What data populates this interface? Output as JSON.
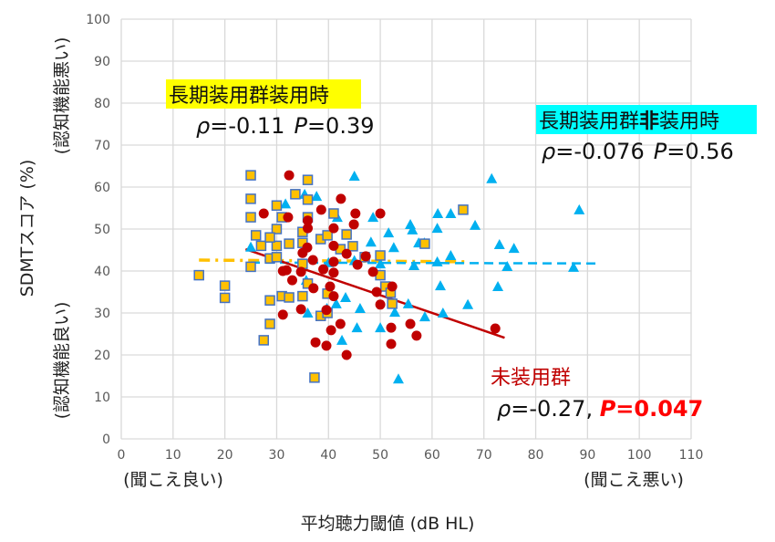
{
  "chart_data": {
    "type": "scatter",
    "xlabel": "平均聴力閾値 (dB HL)",
    "ylabel": "SDMTスコア (%)",
    "ylabel_top_note": "(認知機能悪い)",
    "ylabel_bottom_note": "(認知機能良い)",
    "xlabel_left_note": "(聞こえ良い)",
    "xlabel_right_note": "(聞こえ悪い)",
    "xlim": [
      0,
      110
    ],
    "ylim": [
      0,
      100
    ],
    "xticks": [
      0,
      10,
      20,
      30,
      40,
      50,
      60,
      70,
      80,
      90,
      100,
      110
    ],
    "yticks": [
      0,
      10,
      20,
      30,
      40,
      50,
      60,
      70,
      80,
      90,
      100
    ],
    "grid": true,
    "colors": {
      "users_on": "#ffc000",
      "users_on_edge": "#4472c4",
      "users_off": "#00b0f0",
      "non_users": "#c00000",
      "grid": "#d9d9d9"
    },
    "series": [
      {
        "name": "長期装用群装用時",
        "marker": "square",
        "points": [
          [
            15,
            39
          ],
          [
            20,
            36.5
          ],
          [
            20,
            33.6
          ],
          [
            25,
            62.8
          ],
          [
            25,
            57.2
          ],
          [
            25,
            52.8
          ],
          [
            25,
            41
          ],
          [
            26,
            48.5
          ],
          [
            27,
            46
          ],
          [
            27.5,
            23.5
          ],
          [
            28.7,
            43
          ],
          [
            28.7,
            33
          ],
          [
            28.7,
            27.4
          ],
          [
            30,
            55.6
          ],
          [
            30,
            46
          ],
          [
            30,
            43.3
          ],
          [
            30,
            50
          ],
          [
            28.7,
            48
          ],
          [
            31,
            52.8
          ],
          [
            31,
            34
          ],
          [
            32.4,
            46.5
          ],
          [
            32.4,
            33.7
          ],
          [
            33.6,
            58.3
          ],
          [
            35,
            49.3
          ],
          [
            35,
            46.7
          ],
          [
            35,
            41.7
          ],
          [
            35,
            34
          ],
          [
            36,
            61.7
          ],
          [
            36,
            57
          ],
          [
            36,
            52.8
          ],
          [
            36,
            37
          ],
          [
            37.3,
            14.6
          ],
          [
            38.5,
            47.6
          ],
          [
            38.5,
            29.3
          ],
          [
            39.8,
            48.5
          ],
          [
            39.8,
            34.6
          ],
          [
            39.8,
            30
          ],
          [
            41,
            53.7
          ],
          [
            42.3,
            45.2
          ],
          [
            43.5,
            48.7
          ],
          [
            44.7,
            45.9
          ],
          [
            47,
            43.3
          ],
          [
            50,
            43.7
          ],
          [
            51,
            36.3
          ],
          [
            52,
            34.8
          ],
          [
            52.3,
            32.2
          ],
          [
            58.6,
            46.5
          ],
          [
            66,
            54.6
          ],
          [
            50,
            39
          ]
        ]
      },
      {
        "name": "長期装用群非装用時",
        "marker": "triangle",
        "points": [
          [
            45,
            62.6
          ],
          [
            71.5,
            62
          ],
          [
            88.4,
            54.6
          ],
          [
            35.4,
            58.3
          ],
          [
            31.7,
            56
          ],
          [
            31.2,
            52.8
          ],
          [
            48.6,
            52.8
          ],
          [
            55.8,
            51.1
          ],
          [
            56.2,
            49.8
          ],
          [
            61.1,
            53.7
          ],
          [
            61,
            50.2
          ],
          [
            63.6,
            53.7
          ],
          [
            68.3,
            50.9
          ],
          [
            73,
            46.3
          ],
          [
            75.8,
            45.4
          ],
          [
            52.6,
            45.6
          ],
          [
            57.4,
            46.7
          ],
          [
            58.5,
            46.7
          ],
          [
            51.6,
            49.1
          ],
          [
            25,
            45.7
          ],
          [
            41.7,
            52.8
          ],
          [
            48.2,
            46.9
          ],
          [
            63.6,
            43.7
          ],
          [
            61,
            42.2
          ],
          [
            74.5,
            41.1
          ],
          [
            87.3,
            40.9
          ],
          [
            56.5,
            41.3
          ],
          [
            50,
            41.7
          ],
          [
            61.6,
            36.5
          ],
          [
            72.7,
            36.3
          ],
          [
            51.6,
            36.3
          ],
          [
            35.7,
            37.8
          ],
          [
            39.7,
            31.1
          ],
          [
            41.5,
            32.2
          ],
          [
            43.3,
            33.7
          ],
          [
            46.1,
            31.1
          ],
          [
            55.4,
            32.2
          ],
          [
            52.8,
            30.2
          ],
          [
            58.6,
            29.1
          ],
          [
            62.1,
            30
          ],
          [
            66.9,
            32
          ],
          [
            50,
            26.5
          ],
          [
            45.5,
            26.5
          ],
          [
            36,
            30
          ],
          [
            42.6,
            23.5
          ],
          [
            53.5,
            14.3
          ],
          [
            37.7,
            57.8
          ],
          [
            40,
            42
          ],
          [
            45,
            42.5
          ]
        ]
      },
      {
        "name": "未装用群",
        "marker": "circle",
        "points": [
          [
            32.4,
            62.8
          ],
          [
            42.4,
            57.2
          ],
          [
            27.5,
            53.7
          ],
          [
            38.6,
            54.6
          ],
          [
            32.2,
            52.8
          ],
          [
            36,
            52
          ],
          [
            45.2,
            53.7
          ],
          [
            44.9,
            51.1
          ],
          [
            50,
            53.7
          ],
          [
            36,
            50.2
          ],
          [
            41,
            50.2
          ],
          [
            41,
            46
          ],
          [
            35.9,
            45.6
          ],
          [
            35,
            44.3
          ],
          [
            31.9,
            40.2
          ],
          [
            37,
            42.6
          ],
          [
            43.5,
            44.1
          ],
          [
            45.6,
            41.5
          ],
          [
            47.2,
            43.5
          ],
          [
            41,
            42.2
          ],
          [
            41,
            39.6
          ],
          [
            39,
            40.4
          ],
          [
            48.6,
            39.8
          ],
          [
            49.3,
            35
          ],
          [
            50,
            32
          ],
          [
            52.3,
            36.3
          ],
          [
            37.1,
            35.9
          ],
          [
            33,
            37.8
          ],
          [
            31.2,
            40
          ],
          [
            34.7,
            39.8
          ],
          [
            40.3,
            36.3
          ],
          [
            41,
            34
          ],
          [
            39.6,
            30.7
          ],
          [
            42.3,
            27.4
          ],
          [
            40.5,
            25.9
          ],
          [
            34.7,
            30.9
          ],
          [
            37.5,
            23
          ],
          [
            39.6,
            22.2
          ],
          [
            43.5,
            20
          ],
          [
            52.1,
            26.5
          ],
          [
            52.1,
            22.6
          ],
          [
            55.8,
            27.4
          ],
          [
            57,
            24.6
          ],
          [
            72.2,
            26.3
          ],
          [
            31.2,
            29.6
          ]
        ]
      }
    ],
    "trendlines": [
      {
        "series": "長期装用群装用時",
        "style": "dash-dot",
        "from": [
          15,
          42.6
        ],
        "to": [
          67,
          42.2
        ]
      },
      {
        "series": "長期装用群非装用時",
        "style": "dashed",
        "from": [
          25,
          42
        ],
        "to": [
          92,
          41.8
        ]
      },
      {
        "series": "未装用群",
        "style": "solid",
        "from": [
          24,
          45.2
        ],
        "to": [
          74,
          24.1
        ]
      }
    ],
    "annotations": {
      "users_on": {
        "title": "長期装用群装用時",
        "rho_label": "ρ",
        "rho_value": "=-0.11",
        "p_label": "P",
        "p_value": "=0.39"
      },
      "users_off": {
        "title_a": "長期装用群",
        "title_b": "非",
        "title_c": "装用時",
        "rho_label": "ρ",
        "rho_value": "=-0.076",
        "p_label": "P",
        "p_value": "=0.56"
      },
      "non_users": {
        "title": "未装用群",
        "rho_label": "ρ",
        "rho_value": "=-0.27, ",
        "p_label": "P",
        "p_value": "=0.047"
      }
    }
  }
}
